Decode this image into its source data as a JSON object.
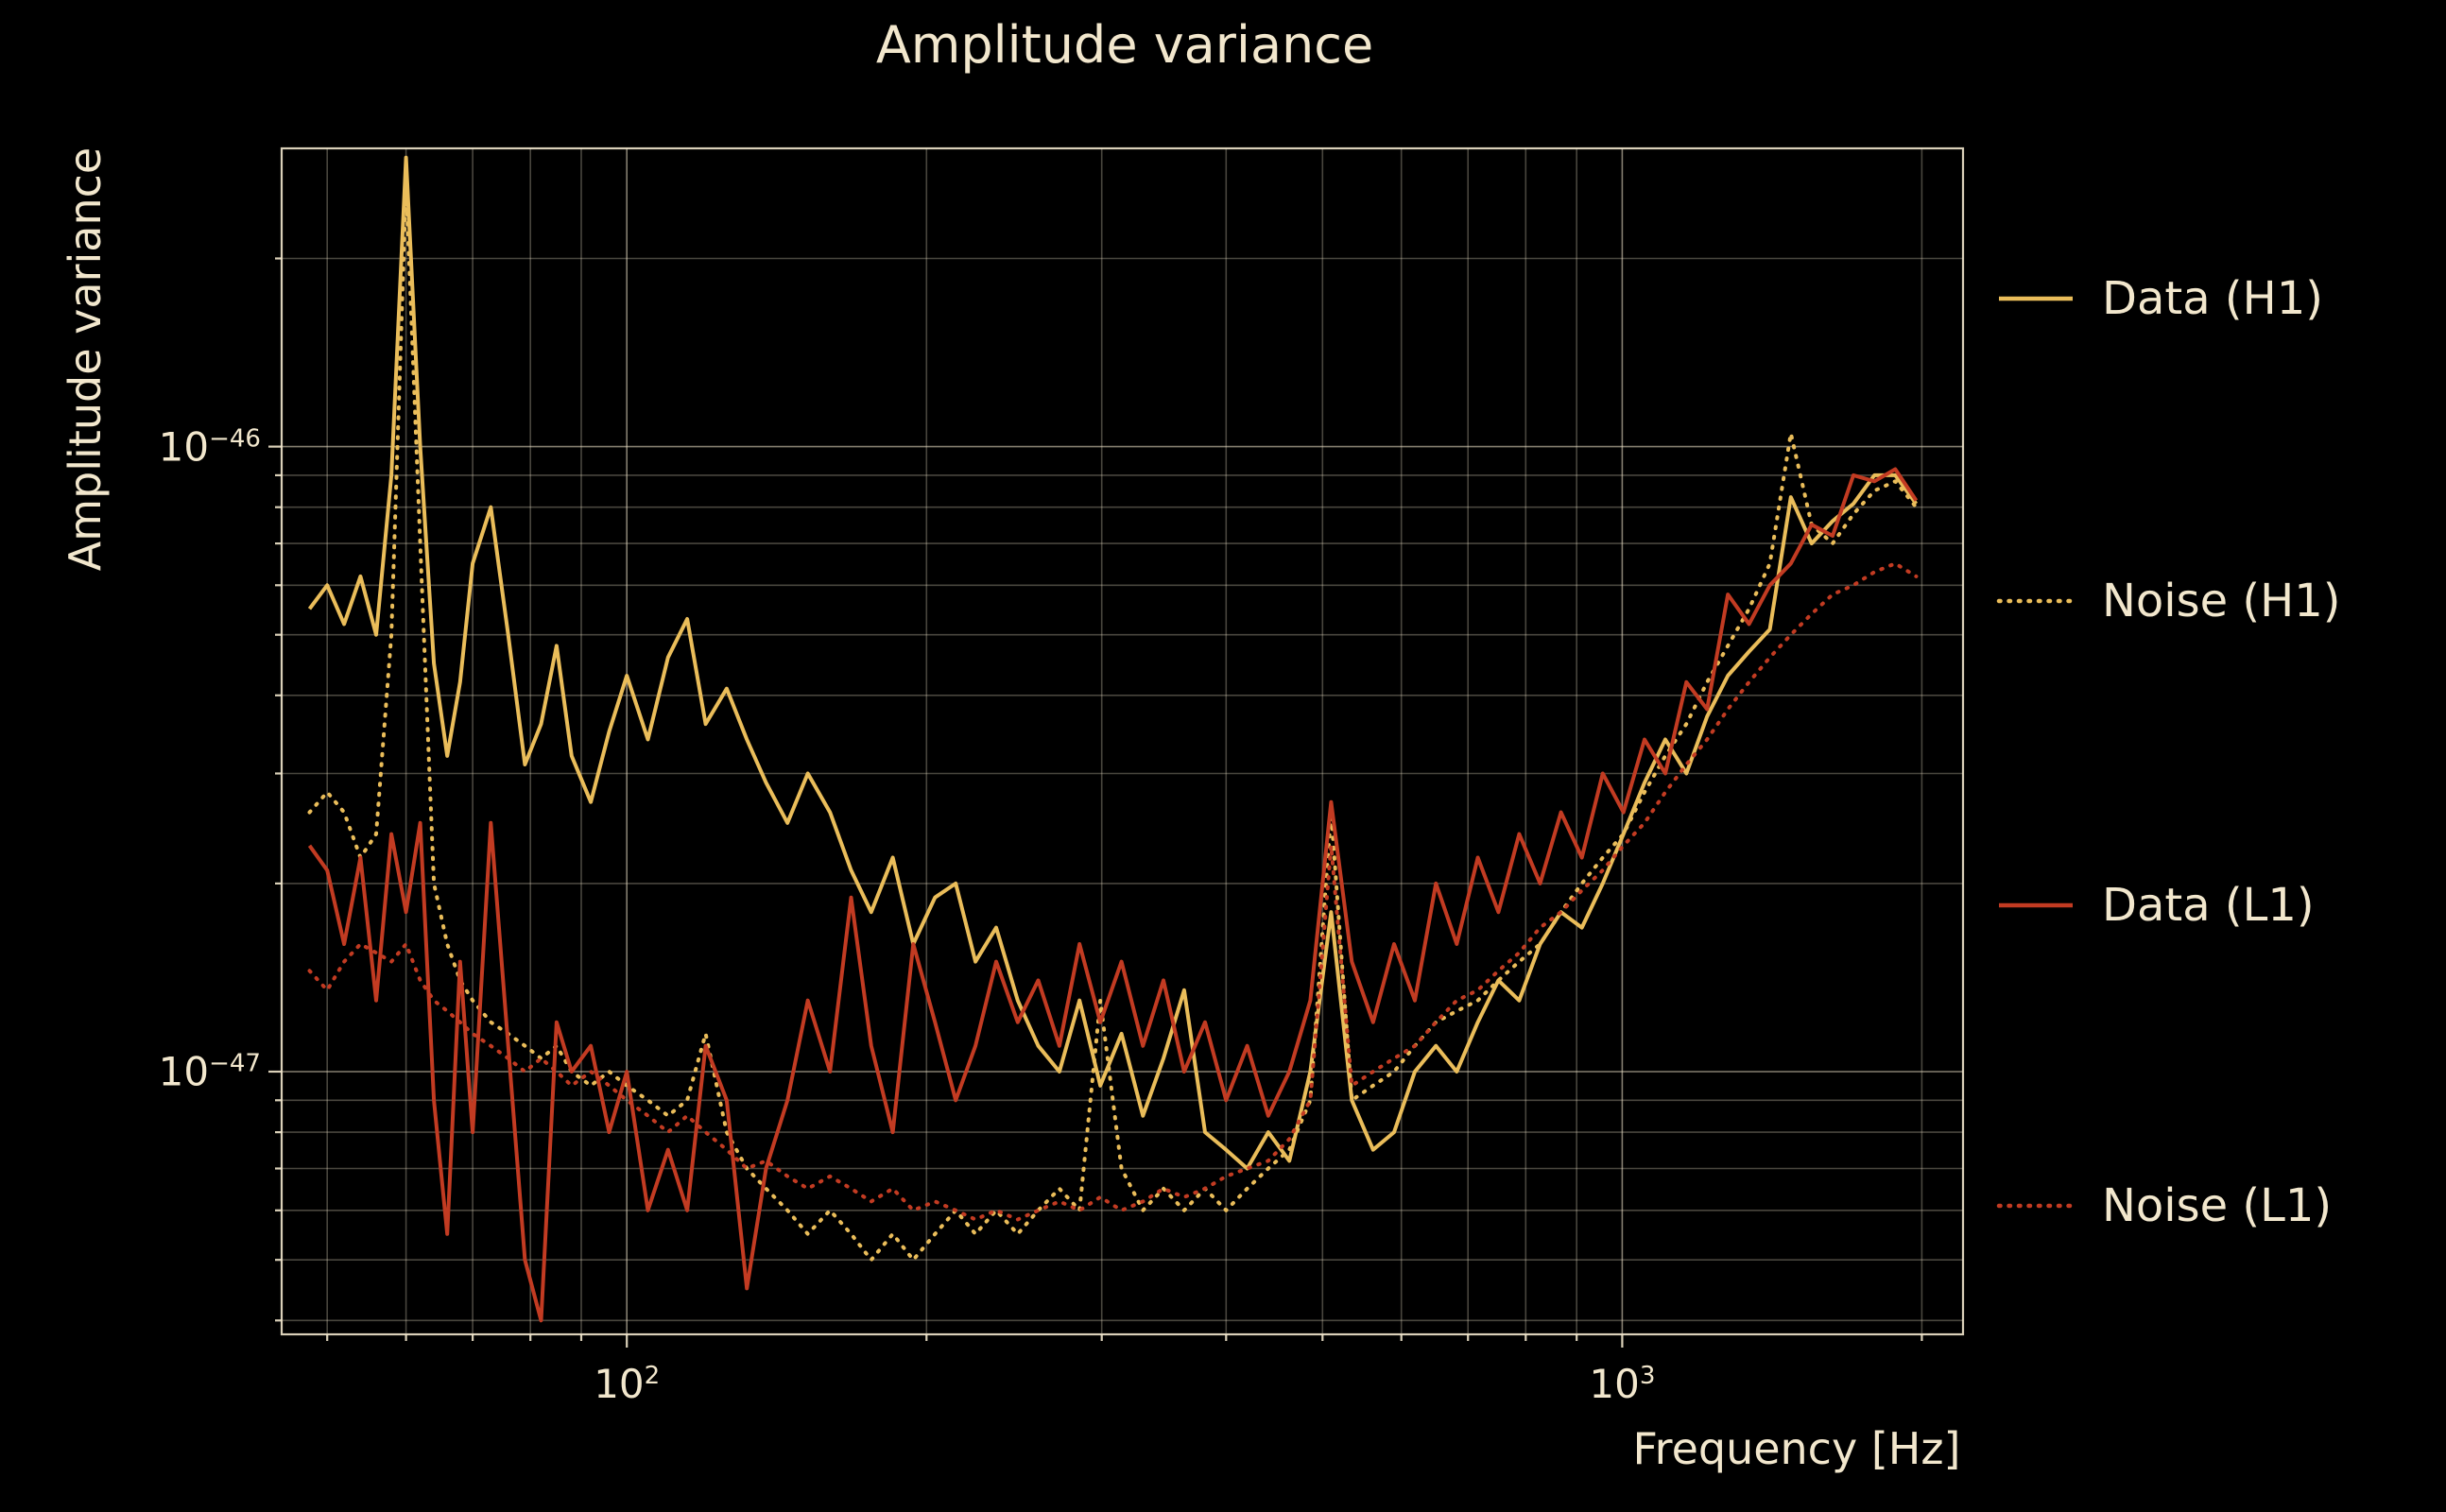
{
  "title": "Amplitude variance",
  "colors": {
    "background": "#000000",
    "text": "#f2e7cd",
    "grid": "#f2e7cd",
    "h1": "#eabd5a",
    "l1": "#c23b22"
  },
  "legend": [
    {
      "label": "Data (H1)",
      "color_key": "h1",
      "line": "solid"
    },
    {
      "label": "Noise (H1)",
      "color_key": "h1",
      "line": "dotted"
    },
    {
      "label": "Data (L1)",
      "color_key": "l1",
      "line": "solid"
    },
    {
      "label": "Noise (L1)",
      "color_key": "l1",
      "line": "dotted"
    }
  ],
  "chart_data": {
    "type": "line",
    "title": "Amplitude variance",
    "xlabel": "Frequency [Hz]",
    "ylabel": "Amplitude variance",
    "xscale": "log",
    "yscale": "log",
    "grid": true,
    "legend_position": "right-outside",
    "xlim": [
      45,
      2200
    ],
    "ylim": [
      3.8e-48,
      3e-46
    ],
    "x_ticks": [
      {
        "value": 100,
        "label_base": "10",
        "label_exp": "2"
      },
      {
        "value": 1000,
        "label_base": "10",
        "label_exp": "3"
      }
    ],
    "y_ticks": [
      {
        "value": 1e-46,
        "label_base": "10",
        "label_exp": "−46"
      },
      {
        "value": 1e-47,
        "label_base": "10",
        "label_exp": "−47"
      }
    ],
    "value_scale": 1e-47,
    "x": [
      48,
      50,
      52,
      54,
      56,
      58,
      60,
      62,
      64,
      66,
      68,
      70,
      73,
      76,
      79,
      82,
      85,
      88,
      92,
      96,
      100,
      105,
      110,
      115,
      120,
      126,
      132,
      138,
      145,
      152,
      160,
      168,
      176,
      185,
      194,
      204,
      214,
      224,
      235,
      247,
      259,
      272,
      285,
      299,
      314,
      330,
      346,
      363,
      381,
      400,
      420,
      441,
      463,
      486,
      510,
      535,
      562,
      590,
      619,
      650,
      682,
      716,
      751,
      788,
      827,
      868,
      911,
      956,
      1003,
      1053,
      1105,
      1160,
      1217,
      1277,
      1341,
      1407,
      1477,
      1550,
      1627,
      1707,
      1792,
      1881,
      1974
    ],
    "series": [
      {
        "name": "Data (H1)",
        "color": "#eabd5a",
        "style": "solid",
        "values": [
          5.5,
          6.0,
          5.2,
          6.2,
          5.0,
          9.0,
          29.0,
          10.0,
          4.5,
          3.2,
          4.2,
          6.5,
          8.0,
          5.0,
          3.1,
          3.6,
          4.8,
          3.2,
          2.7,
          3.5,
          4.3,
          3.4,
          4.6,
          5.3,
          3.6,
          4.1,
          3.4,
          2.9,
          2.5,
          3.0,
          2.6,
          2.1,
          1.8,
          2.2,
          1.6,
          1.9,
          2.0,
          1.5,
          1.7,
          1.3,
          1.1,
          1.0,
          1.3,
          0.95,
          1.15,
          0.85,
          1.05,
          1.35,
          0.8,
          0.75,
          0.7,
          0.8,
          0.72,
          1.0,
          1.8,
          0.9,
          0.75,
          0.8,
          1.0,
          1.1,
          1.0,
          1.2,
          1.4,
          1.3,
          1.6,
          1.8,
          1.7,
          2.0,
          2.4,
          2.9,
          3.4,
          3.0,
          3.7,
          4.3,
          4.7,
          5.1,
          8.3,
          7.0,
          7.6,
          8.1,
          9.0,
          9.0,
          8.1
        ]
      },
      {
        "name": "Noise (H1)",
        "color": "#eabd5a",
        "style": "dotted",
        "values": [
          2.6,
          2.8,
          2.6,
          2.2,
          2.4,
          5.0,
          26.5,
          7.0,
          2.0,
          1.6,
          1.4,
          1.3,
          1.2,
          1.15,
          1.1,
          1.05,
          1.1,
          1.0,
          0.95,
          1.0,
          0.95,
          0.9,
          0.85,
          0.9,
          1.15,
          0.8,
          0.7,
          0.65,
          0.6,
          0.55,
          0.6,
          0.55,
          0.5,
          0.55,
          0.5,
          0.55,
          0.6,
          0.55,
          0.6,
          0.55,
          0.6,
          0.65,
          0.6,
          1.3,
          0.7,
          0.6,
          0.65,
          0.6,
          0.65,
          0.6,
          0.65,
          0.7,
          0.75,
          0.9,
          2.6,
          0.9,
          0.95,
          1.0,
          1.1,
          1.2,
          1.25,
          1.3,
          1.4,
          1.5,
          1.6,
          1.8,
          2.0,
          2.2,
          2.4,
          2.8,
          3.2,
          3.6,
          4.2,
          4.8,
          5.5,
          6.5,
          10.5,
          7.5,
          7.0,
          7.8,
          8.5,
          8.8,
          8.0
        ]
      },
      {
        "name": "Data (L1)",
        "color": "#c23b22",
        "style": "solid",
        "values": [
          2.3,
          2.1,
          1.6,
          2.2,
          1.3,
          2.4,
          1.8,
          2.5,
          0.9,
          0.55,
          1.5,
          0.8,
          2.5,
          1.1,
          0.5,
          0.4,
          1.2,
          1.0,
          1.1,
          0.8,
          1.0,
          0.6,
          0.75,
          0.6,
          1.1,
          0.9,
          0.45,
          0.7,
          0.9,
          1.3,
          1.0,
          1.9,
          1.1,
          0.8,
          1.6,
          1.2,
          0.9,
          1.1,
          1.5,
          1.2,
          1.4,
          1.1,
          1.6,
          1.2,
          1.5,
          1.1,
          1.4,
          1.0,
          1.2,
          0.9,
          1.1,
          0.85,
          1.0,
          1.3,
          2.7,
          1.5,
          1.2,
          1.6,
          1.3,
          2.0,
          1.6,
          2.2,
          1.8,
          2.4,
          2.0,
          2.6,
          2.2,
          3.0,
          2.6,
          3.4,
          3.0,
          4.2,
          3.8,
          5.8,
          5.2,
          6.0,
          6.5,
          7.5,
          7.2,
          9.0,
          8.8,
          9.2,
          8.2
        ]
      },
      {
        "name": "Noise (L1)",
        "color": "#c23b22",
        "style": "dotted",
        "values": [
          1.45,
          1.35,
          1.5,
          1.6,
          1.55,
          1.5,
          1.6,
          1.4,
          1.3,
          1.25,
          1.2,
          1.15,
          1.1,
          1.05,
          1.0,
          1.05,
          1.0,
          0.95,
          1.0,
          0.95,
          0.9,
          0.85,
          0.8,
          0.85,
          0.8,
          0.75,
          0.7,
          0.72,
          0.68,
          0.65,
          0.68,
          0.65,
          0.62,
          0.65,
          0.6,
          0.62,
          0.6,
          0.58,
          0.6,
          0.58,
          0.6,
          0.62,
          0.6,
          0.63,
          0.6,
          0.62,
          0.65,
          0.63,
          0.65,
          0.68,
          0.7,
          0.72,
          0.78,
          0.9,
          2.3,
          0.95,
          1.0,
          1.05,
          1.1,
          1.2,
          1.3,
          1.35,
          1.45,
          1.55,
          1.7,
          1.8,
          1.95,
          2.1,
          2.3,
          2.5,
          2.8,
          3.1,
          3.4,
          3.8,
          4.2,
          4.6,
          5.0,
          5.4,
          5.8,
          6.0,
          6.3,
          6.5,
          6.2
        ]
      }
    ]
  }
}
